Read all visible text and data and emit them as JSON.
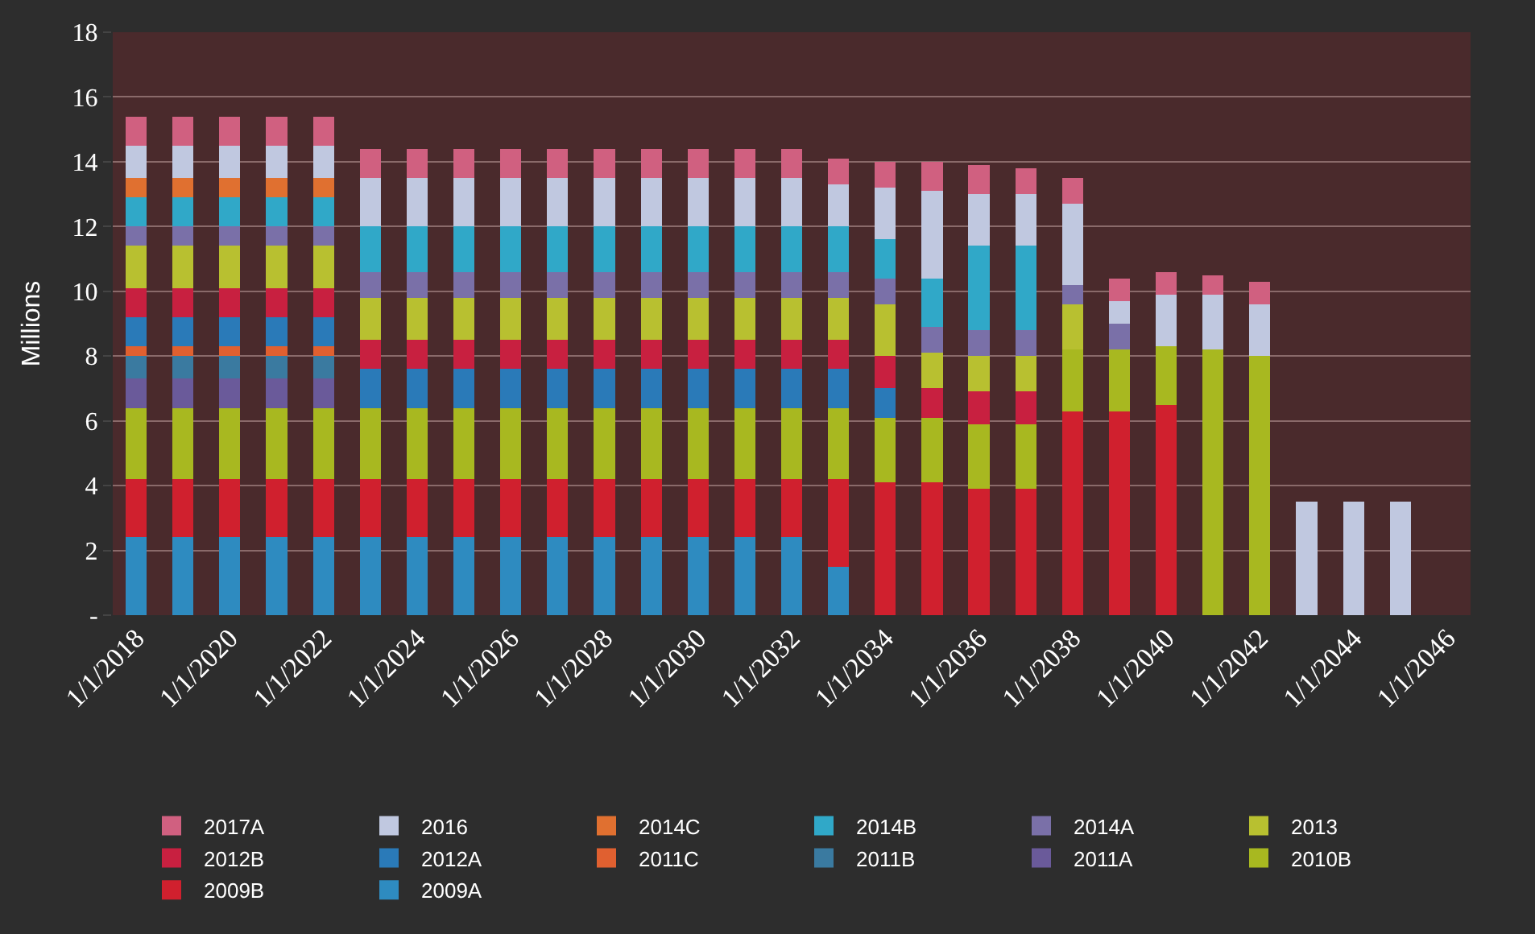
{
  "chart_data": {
    "type": "bar",
    "stacked": true,
    "ylabel": "Millions",
    "categories": [
      "1/1/2018",
      null,
      "1/1/2020",
      null,
      "1/1/2022",
      null,
      "1/1/2024",
      null,
      "1/1/2026",
      null,
      "1/1/2028",
      null,
      "1/1/2030",
      null,
      "1/1/2032",
      null,
      "1/1/2034",
      null,
      "1/1/2036",
      null,
      "1/1/2038",
      null,
      "1/1/2040",
      null,
      "1/1/2042",
      null,
      "1/1/2044",
      null,
      "1/1/2046"
    ],
    "ylim": [
      0,
      18
    ],
    "yticks": [
      {
        "value": 0,
        "label": "-"
      },
      2,
      4,
      6,
      8,
      10,
      12,
      14,
      16,
      18
    ],
    "grid": "y",
    "legend": "bottom",
    "series": [
      {
        "name": "2009A",
        "color": "#2e8bc0",
        "values": [
          2.4,
          2.4,
          2.4,
          2.4,
          2.4,
          2.4,
          2.4,
          2.4,
          2.4,
          2.4,
          2.4,
          2.4,
          2.4,
          2.4,
          2.4,
          1.5,
          null,
          null,
          null,
          null,
          null,
          null,
          null,
          null,
          null,
          null,
          null,
          null,
          null
        ]
      },
      {
        "name": "2009B",
        "color": "#d0202e",
        "values": [
          1.8,
          1.8,
          1.8,
          1.8,
          1.8,
          1.8,
          1.8,
          1.8,
          1.8,
          1.8,
          1.8,
          1.8,
          1.8,
          1.8,
          1.8,
          2.7,
          4.1,
          4.1,
          3.9,
          3.9,
          6.3,
          6.3,
          6.5,
          null,
          null,
          null,
          null,
          null,
          null
        ]
      },
      {
        "name": "2010B",
        "color": "#a8b820",
        "values": [
          2.2,
          2.2,
          2.2,
          2.2,
          2.2,
          2.2,
          2.2,
          2.2,
          2.2,
          2.2,
          2.2,
          2.2,
          2.2,
          2.2,
          2.2,
          2.2,
          2.0,
          2.0,
          2.0,
          2.0,
          1.9,
          1.9,
          1.8,
          8.2,
          8.0,
          null,
          null,
          null,
          null
        ]
      },
      {
        "name": "2011A",
        "color": "#6a5a9a",
        "values": [
          0.9,
          0.9,
          0.9,
          0.9,
          0.9,
          null,
          null,
          null,
          null,
          null,
          null,
          null,
          null,
          null,
          null,
          null,
          null,
          null,
          null,
          null,
          null,
          null,
          null,
          null,
          null,
          null,
          null,
          null,
          null
        ]
      },
      {
        "name": "2011B",
        "color": "#3a7aa0",
        "values": [
          0.7,
          0.7,
          0.7,
          0.7,
          0.7,
          null,
          null,
          null,
          null,
          null,
          null,
          null,
          null,
          null,
          null,
          null,
          null,
          null,
          null,
          null,
          null,
          null,
          null,
          null,
          null,
          null,
          null,
          null,
          null
        ]
      },
      {
        "name": "2011C",
        "color": "#e06030",
        "values": [
          0.3,
          0.3,
          0.3,
          0.3,
          0.3,
          null,
          null,
          null,
          null,
          null,
          null,
          null,
          null,
          null,
          null,
          null,
          null,
          null,
          null,
          null,
          null,
          null,
          null,
          null,
          null,
          null,
          null,
          null,
          null
        ]
      },
      {
        "name": "2012A",
        "color": "#2a7ab8",
        "values": [
          0.9,
          0.9,
          0.9,
          0.9,
          0.9,
          1.2,
          1.2,
          1.2,
          1.2,
          1.2,
          1.2,
          1.2,
          1.2,
          1.2,
          1.2,
          1.2,
          0.9,
          null,
          null,
          null,
          null,
          null,
          null,
          null,
          null,
          null,
          null,
          null,
          null
        ]
      },
      {
        "name": "2012B",
        "color": "#c82040",
        "values": [
          0.9,
          0.9,
          0.9,
          0.9,
          0.9,
          0.9,
          0.9,
          0.9,
          0.9,
          0.9,
          0.9,
          0.9,
          0.9,
          0.9,
          0.9,
          0.9,
          1.0,
          0.9,
          1.0,
          1.0,
          null,
          null,
          null,
          null,
          null,
          null,
          null,
          null,
          null
        ]
      },
      {
        "name": "2013",
        "color": "#b8c030",
        "values": [
          1.3,
          1.3,
          1.3,
          1.3,
          1.3,
          1.3,
          1.3,
          1.3,
          1.3,
          1.3,
          1.3,
          1.3,
          1.3,
          1.3,
          1.3,
          1.3,
          1.6,
          1.1,
          1.1,
          1.1,
          1.4,
          null,
          null,
          null,
          null,
          null,
          null,
          null,
          null
        ]
      },
      {
        "name": "2014A",
        "color": "#7a70a8",
        "values": [
          0.6,
          0.6,
          0.6,
          0.6,
          0.6,
          0.8,
          0.8,
          0.8,
          0.8,
          0.8,
          0.8,
          0.8,
          0.8,
          0.8,
          0.8,
          0.8,
          0.8,
          0.8,
          0.8,
          0.8,
          0.6,
          0.8,
          null,
          null,
          null,
          null,
          null,
          null,
          null
        ]
      },
      {
        "name": "2014B",
        "color": "#30a8c8",
        "values": [
          0.9,
          0.9,
          0.9,
          0.9,
          0.9,
          1.4,
          1.4,
          1.4,
          1.4,
          1.4,
          1.4,
          1.4,
          1.4,
          1.4,
          1.4,
          1.4,
          1.2,
          1.5,
          2.6,
          2.6,
          null,
          null,
          null,
          null,
          null,
          null,
          null,
          null,
          null
        ]
      },
      {
        "name": "2014C",
        "color": "#e07030",
        "values": [
          0.6,
          0.6,
          0.6,
          0.6,
          0.6,
          null,
          null,
          null,
          null,
          null,
          null,
          null,
          null,
          null,
          null,
          null,
          null,
          null,
          null,
          null,
          null,
          null,
          null,
          null,
          null,
          null,
          null,
          null,
          null
        ]
      },
      {
        "name": "2016",
        "color": "#c0c8e0",
        "values": [
          1.0,
          1.0,
          1.0,
          1.0,
          1.0,
          1.5,
          1.5,
          1.5,
          1.5,
          1.5,
          1.5,
          1.5,
          1.5,
          1.5,
          1.5,
          1.3,
          1.6,
          2.7,
          1.6,
          1.6,
          2.5,
          0.7,
          1.6,
          1.7,
          1.6,
          3.5,
          3.5,
          3.5,
          null
        ]
      },
      {
        "name": "2017A",
        "color": "#d06080",
        "values": [
          0.9,
          0.9,
          0.9,
          0.9,
          0.9,
          0.9,
          0.9,
          0.9,
          0.9,
          0.9,
          0.9,
          0.9,
          0.9,
          0.9,
          0.9,
          0.8,
          0.8,
          0.9,
          0.9,
          0.8,
          0.8,
          0.7,
          0.7,
          0.6,
          0.7,
          null,
          null,
          null,
          null
        ]
      }
    ]
  }
}
